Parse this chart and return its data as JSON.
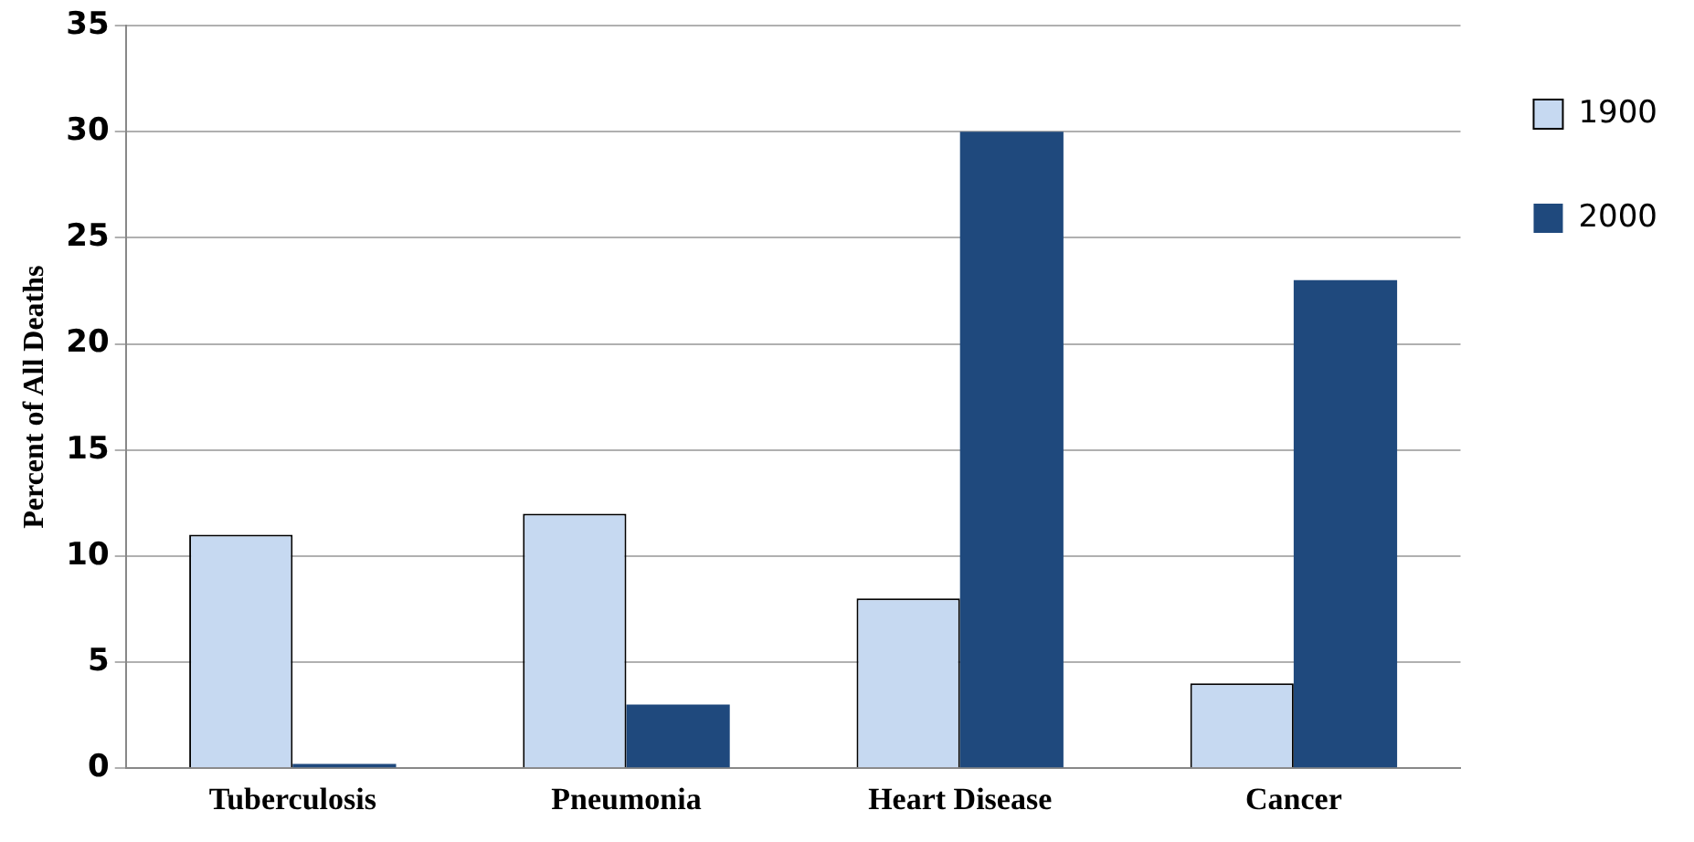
{
  "chart_data": {
    "type": "bar",
    "ylabel": "Percent of All Deaths",
    "categories": [
      "Tuberculosis",
      "Pneumonia",
      "Heart Disease",
      "Cancer"
    ],
    "series": [
      {
        "name": "1900",
        "color": "#c6d9f1",
        "values": [
          11,
          12,
          8,
          4
        ]
      },
      {
        "name": "2000",
        "color": "#1f497d",
        "values": [
          0.2,
          3,
          30,
          23
        ]
      }
    ],
    "ylim": [
      0,
      35
    ],
    "yticks": [
      0,
      5,
      10,
      15,
      20,
      25,
      30,
      35
    ],
    "grid": "y",
    "legend": "top right"
  }
}
